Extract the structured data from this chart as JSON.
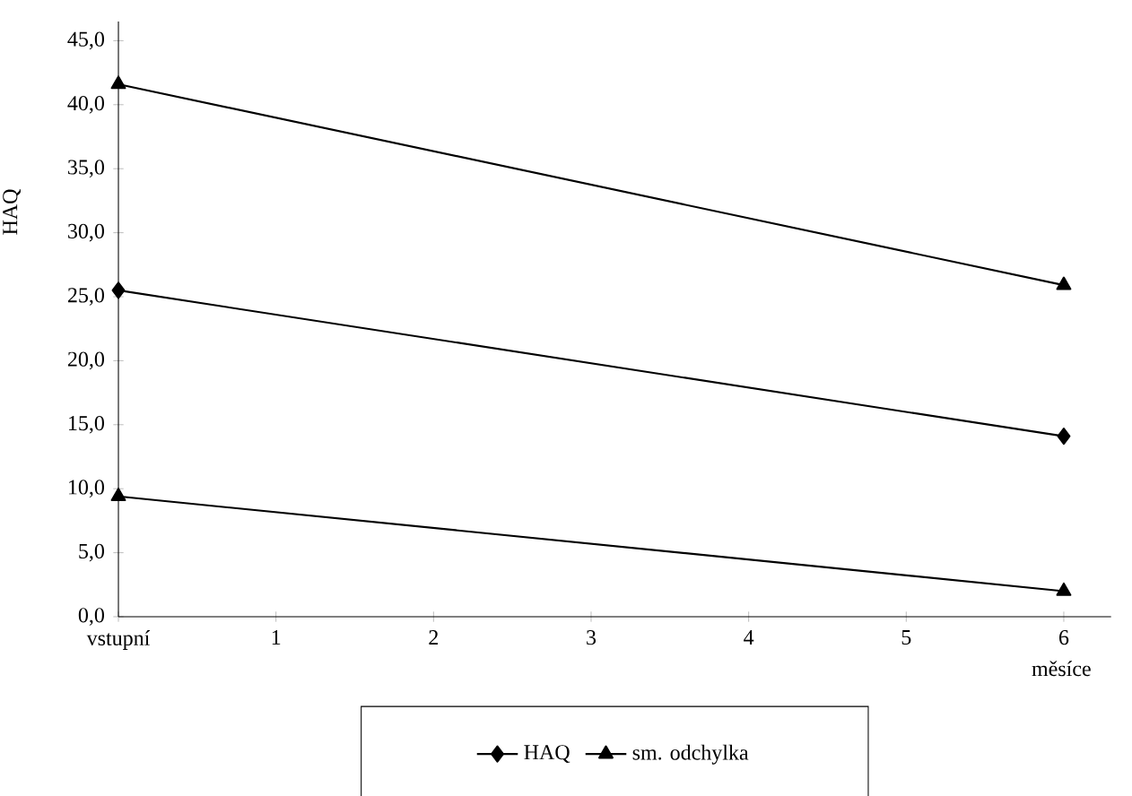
{
  "chart_data": {
    "type": "line",
    "xlabel": "měsíce",
    "ylabel": "HAQ",
    "x": [
      0,
      6
    ],
    "series": [
      {
        "name": "HAQ",
        "color": "#000000",
        "marker": "diamond",
        "values": [
          25.5,
          14.1
        ]
      },
      {
        "name": "sm. odchylka",
        "color": "#000000",
        "marker": "triangle",
        "values": [
          41.6,
          25.9
        ]
      },
      {
        "color": "#000000",
        "marker": "triangle",
        "values": [
          9.4,
          2.0
        ]
      }
    ],
    "xlim": [
      0,
      6.3
    ],
    "xticks": [
      {
        "value": 0,
        "label": "vstupní"
      },
      1,
      2,
      3,
      4,
      5,
      6
    ],
    "ylim": [
      0,
      46.5
    ],
    "yticks": [
      {
        "value": 0,
        "label": "0,0"
      },
      {
        "value": 5,
        "label": "5,0"
      },
      {
        "value": 10,
        "label": "10,0"
      },
      {
        "value": 15,
        "label": "15,0"
      },
      {
        "value": 20,
        "label": "20,0"
      },
      {
        "value": 25,
        "label": "25,0"
      },
      {
        "value": 30,
        "label": "30,0"
      },
      {
        "value": 35,
        "label": "35,0"
      },
      {
        "value": 40,
        "label": "40,0"
      },
      {
        "value": 45,
        "label": "45,0"
      }
    ],
    "grid": false,
    "legend": "bottom",
    "line_style": "solid"
  }
}
